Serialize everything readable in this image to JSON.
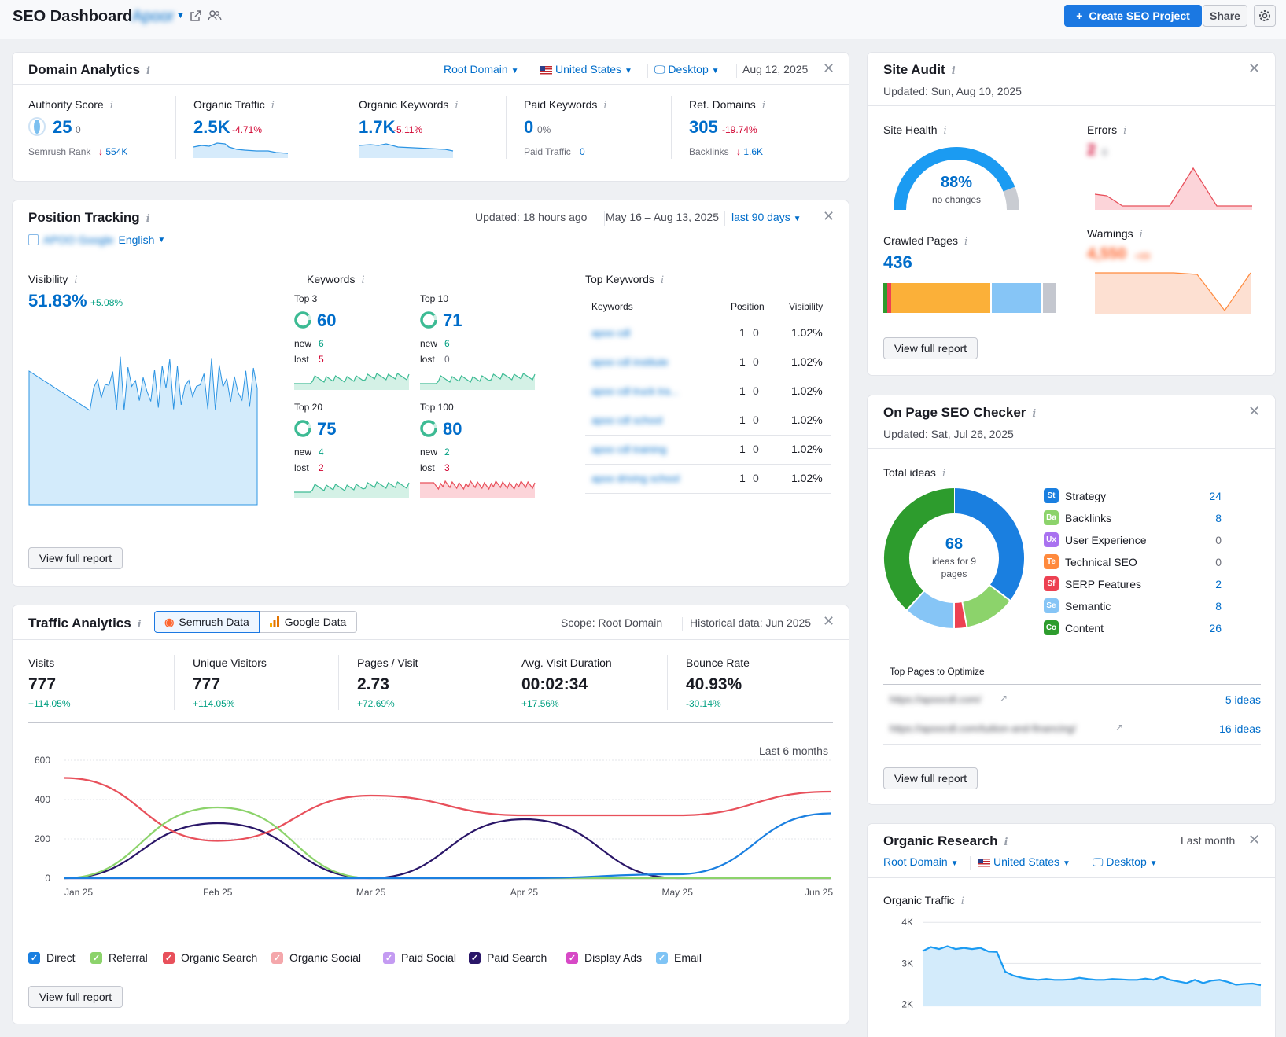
{
  "header": {
    "title": "SEO Dashboard",
    "project_name": "Apoor",
    "create_button": "Create SEO Project",
    "create_plus": "+",
    "share_button": "Share"
  },
  "domain_analytics": {
    "title": "Domain Analytics",
    "filters": {
      "domain": "Root Domain",
      "country": "United States",
      "device": "Desktop",
      "date": "Aug 12, 2025"
    },
    "metrics": [
      {
        "label": "Authority Score",
        "value": "25",
        "change": "0",
        "sub_label": "Semrush Rank",
        "sub_value": "554K",
        "sub_arrow": "↓"
      },
      {
        "label": "Organic Traffic",
        "value": "2.5K",
        "change": "-4.71%"
      },
      {
        "label": "Organic Keywords",
        "value": "1.7K",
        "change": "-5.11%"
      },
      {
        "label": "Paid Keywords",
        "value": "0",
        "change": "0%",
        "sub_label": "Paid Traffic",
        "sub_value": "0"
      },
      {
        "label": "Ref. Domains",
        "value": "305",
        "change": "-19.74%",
        "sub_label": "Backlinks",
        "sub_value": "1.6K",
        "sub_arrow": "↓"
      }
    ]
  },
  "position_tracking": {
    "title": "Position Tracking",
    "updated": "Updated: 18 hours ago",
    "date_range": "May 16 – Aug 13, 2025",
    "period": "last 90 days",
    "engine": "APOO Google",
    "language": "English",
    "visibility_label": "Visibility",
    "visibility_value": "51.83%",
    "visibility_change": "+5.08%",
    "keywords_label": "Keywords",
    "new_label": "new",
    "lost_label": "lost",
    "groups": [
      {
        "label": "Top 3",
        "value": "60",
        "new": "6",
        "lost": "5"
      },
      {
        "label": "Top 10",
        "value": "71",
        "new": "6",
        "lost": "0"
      },
      {
        "label": "Top 20",
        "value": "75",
        "new": "4",
        "lost": "2"
      },
      {
        "label": "Top 100",
        "value": "80",
        "new": "2",
        "lost": "3"
      }
    ],
    "top_keywords_label": "Top Keywords",
    "columns": [
      "Keywords",
      "Position",
      "Visibility"
    ],
    "rows": [
      {
        "keyword": "apoo cdl",
        "position": "1",
        "change": "0",
        "visibility": "1.02%"
      },
      {
        "keyword": "apoo cdl institute",
        "position": "1",
        "change": "0",
        "visibility": "1.02%"
      },
      {
        "keyword": "apoo cdl truck tra...",
        "position": "1",
        "change": "0",
        "visibility": "1.02%"
      },
      {
        "keyword": "apoo cdl school",
        "position": "1",
        "change": "0",
        "visibility": "1.02%"
      },
      {
        "keyword": "apoo cdl training",
        "position": "1",
        "change": "0",
        "visibility": "1.02%"
      },
      {
        "keyword": "apoo driving school",
        "position": "1",
        "change": "0",
        "visibility": "1.02%"
      }
    ],
    "view_report": "View full report"
  },
  "traffic_analytics": {
    "title": "Traffic Analytics",
    "tabs": [
      "Semrush Data",
      "Google Data"
    ],
    "scope": "Scope: Root Domain",
    "historical": "Historical data: Jun 2025",
    "metrics": [
      {
        "label": "Visits",
        "value": "777",
        "change": "+114.05%"
      },
      {
        "label": "Unique Visitors",
        "value": "777",
        "change": "+114.05%"
      },
      {
        "label": "Pages / Visit",
        "value": "2.73",
        "change": "+72.69%"
      },
      {
        "label": "Avg. Visit Duration",
        "value": "00:02:34",
        "change": "+17.56%"
      },
      {
        "label": "Bounce Rate",
        "value": "40.93%",
        "change": "-30.14%"
      }
    ],
    "period": "Last 6 months",
    "view_report": "View full report",
    "chart_data": {
      "type": "line",
      "x": [
        "Jan 25",
        "Feb 25",
        "Mar 25",
        "Apr 25",
        "May 25",
        "Jun 25"
      ],
      "ylim": [
        0,
        600
      ],
      "yticks": [
        "600",
        "400",
        "200",
        "0"
      ],
      "series": [
        {
          "name": "Direct",
          "color": "#1a7fe0",
          "values": [
            0,
            0,
            0,
            0,
            20,
            330
          ]
        },
        {
          "name": "Referral",
          "color": "#8cd36b",
          "values": [
            0,
            360,
            0,
            0,
            0,
            0
          ]
        },
        {
          "name": "Organic Search",
          "color": "#e8505b",
          "values": [
            510,
            190,
            420,
            320,
            320,
            440
          ]
        },
        {
          "name": "Organic Social",
          "color": "#f4a7ab",
          "values": [
            0,
            0,
            0,
            0,
            0,
            0
          ]
        },
        {
          "name": "Paid Social",
          "color": "#c49bf2",
          "values": [
            0,
            0,
            0,
            0,
            0,
            0
          ]
        },
        {
          "name": "Paid Search",
          "color": "#2a1668",
          "values": [
            0,
            280,
            0,
            300,
            0,
            0
          ]
        },
        {
          "name": "Display Ads",
          "color": "#d749c6",
          "values": [
            0,
            0,
            0,
            0,
            0,
            0
          ]
        },
        {
          "name": "Email",
          "color": "#7fc4f5",
          "values": [
            0,
            0,
            0,
            0,
            0,
            0
          ]
        }
      ]
    }
  },
  "site_audit": {
    "title": "Site Audit",
    "updated": "Updated: Sun, Aug 10, 2025",
    "health_label": "Site Health",
    "health_value": "88%",
    "health_sub": "no changes",
    "health_pct": 88,
    "errors_label": "Errors",
    "errors_value": "2",
    "errors_change": "0",
    "crawled_label": "Crawled Pages",
    "crawled_value": "436",
    "warnings_label": "Warnings",
    "warnings_value": "4,550",
    "warnings_change": "+89",
    "view_report": "View full report"
  },
  "on_page": {
    "title": "On Page SEO Checker",
    "updated": "Updated: Sat, Jul 26, 2025",
    "total_label": "Total ideas",
    "total_value": "68",
    "total_sub": "ideas for 9 pages",
    "ideas": [
      {
        "abbr": "St",
        "label": "Strategy",
        "value": "24",
        "color": "#1a7fe0"
      },
      {
        "abbr": "Ba",
        "label": "Backlinks",
        "value": "8",
        "color": "#8cd36b"
      },
      {
        "abbr": "Ux",
        "label": "User Experience",
        "value": "0",
        "color": "#a972f0"
      },
      {
        "abbr": "Te",
        "label": "Technical SEO",
        "value": "0",
        "color": "#ff8a3d"
      },
      {
        "abbr": "Sf",
        "label": "SERP Features",
        "value": "2",
        "color": "#ed4152"
      },
      {
        "abbr": "Se",
        "label": "Semantic",
        "value": "8",
        "color": "#86c5f6"
      },
      {
        "abbr": "Co",
        "label": "Content",
        "value": "26",
        "color": "#2d9c2d"
      }
    ],
    "top_pages_label": "Top Pages to Optimize",
    "pages": [
      {
        "url": "https://apoocdl.com/",
        "ideas": "5 ideas"
      },
      {
        "url": "https://apoocdl.com/tuition-and-financing/",
        "ideas": "16 ideas"
      }
    ],
    "view_report": "View full report"
  },
  "organic_research": {
    "title": "Organic Research",
    "period": "Last month",
    "filters": {
      "domain": "Root Domain",
      "country": "United States",
      "device": "Desktop"
    },
    "traffic_label": "Organic Traffic",
    "chart_data": {
      "type": "area",
      "yticks": [
        "4K",
        "3K",
        "2K"
      ],
      "ylim": [
        1800,
        4100
      ],
      "values": [
        3300,
        3400,
        3350,
        3420,
        3350,
        3380,
        3350,
        3380,
        3290,
        3280,
        2800,
        2700,
        2650,
        2620,
        2600,
        2620,
        2600,
        2600,
        2610,
        2650,
        2620,
        2600,
        2600,
        2620,
        2610,
        2600,
        2600,
        2630,
        2600,
        2670,
        2600,
        2560,
        2520,
        2600,
        2520,
        2580,
        2600,
        2550,
        2480,
        2500,
        2510,
        2470
      ]
    }
  }
}
